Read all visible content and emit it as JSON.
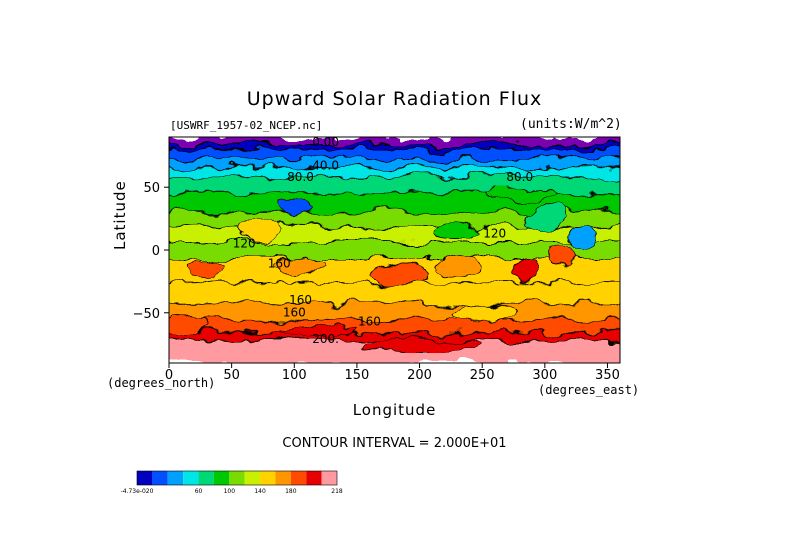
{
  "chart_data": {
    "type": "heatmap",
    "title": "Upward Solar Radiation Flux",
    "file_label": "[USWRF_1957-02_NCEP.nc]",
    "units_label": "(units:W/m^2)",
    "xlabel": "Longitude",
    "ylabel": "Latitude",
    "x_units": "(degrees_east)",
    "y_units": "(degrees_north)",
    "xlim": [
      0,
      360
    ],
    "ylim": [
      -90,
      90
    ],
    "x_ticks": [
      0,
      50,
      100,
      150,
      200,
      250,
      300,
      350
    ],
    "y_ticks": [
      50,
      0,
      -50
    ],
    "y_tick_labels": [
      "50",
      "0",
      "−50"
    ],
    "contour_interval_text": "CONTOUR INTERVAL = 2.000E+01",
    "contour_labels": [
      {
        "text": "0.00",
        "lon": 125,
        "lat": 83
      },
      {
        "text": "40.0",
        "lon": 125,
        "lat": 64
      },
      {
        "text": "80.0",
        "lon": 105,
        "lat": 55
      },
      {
        "text": "80.0",
        "lon": 280,
        "lat": 55
      },
      {
        "text": "120",
        "lon": 60,
        "lat": 2
      },
      {
        "text": "120",
        "lon": 260,
        "lat": 10
      },
      {
        "text": "160",
        "lon": 88,
        "lat": -14
      },
      {
        "text": "160",
        "lon": 105,
        "lat": -43
      },
      {
        "text": "160",
        "lon": 100,
        "lat": -53
      },
      {
        "text": "160",
        "lon": 160,
        "lat": -60
      },
      {
        "text": "200.",
        "lon": 125,
        "lat": -74
      }
    ],
    "colorbar": {
      "colors": [
        "#0000c0",
        "#0050ff",
        "#00a0ff",
        "#00e6e6",
        "#00d878",
        "#00c800",
        "#78dc00",
        "#c8f000",
        "#ffd200",
        "#ff9600",
        "#ff4b00",
        "#e60000",
        "#ff9aa0"
      ],
      "tick_labels": [
        "-4.73e-020",
        "60",
        "100",
        "140",
        "180",
        "218"
      ]
    }
  }
}
